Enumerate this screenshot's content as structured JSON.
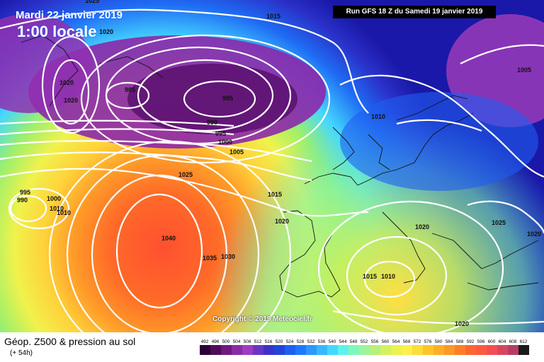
{
  "header": {
    "date": "Mardi 22 janvier 2019",
    "time_label": "1:00 locale",
    "run": "Run GFS 18 Z du Samedi 19 janvier 2019"
  },
  "footer": {
    "title": "Géop. Z500 & pression au sol",
    "lead": "(+ 54h)",
    "copyright": "Copyright © 2019 Meteociel.fr"
  },
  "isobar_labels": [
    "1025",
    "1020",
    "1020",
    "1020",
    "985",
    "985",
    "990",
    "995",
    "1000",
    "1005",
    "1015",
    "1010",
    "1005",
    "1025",
    "995",
    "990",
    "1000",
    "1010",
    "1010",
    "1015",
    "1020",
    "1040",
    "1035",
    "1030",
    "1020",
    "1025",
    "1020",
    "1015",
    "1010",
    "1020"
  ],
  "legend": {
    "values": [
      "492",
      "496",
      "500",
      "504",
      "508",
      "512",
      "516",
      "520",
      "524",
      "528",
      "532",
      "536",
      "540",
      "544",
      "548",
      "552",
      "556",
      "560",
      "564",
      "568",
      "572",
      "576",
      "580",
      "584",
      "588",
      "592",
      "596",
      "600",
      "604",
      "608",
      "612"
    ],
    "colors": [
      "#2a0038",
      "#4e0d58",
      "#6e1a80",
      "#8c2aa6",
      "#9c3cc0",
      "#6a34c6",
      "#3a32c8",
      "#2244d8",
      "#1f5ef0",
      "#1e78ff",
      "#2a98ff",
      "#36b8ff",
      "#44d8ff",
      "#5ef2ec",
      "#7ef7bc",
      "#9cf59a",
      "#b8f07a",
      "#d4f25e",
      "#ecf24e",
      "#fff04a",
      "#ffdc38",
      "#ffc42c",
      "#ffae28",
      "#ff9828",
      "#ff7e28",
      "#ff6630",
      "#ff5a3e",
      "#f24e52",
      "#d8465e",
      "#b63c68",
      "#1a1a1a"
    ]
  }
}
